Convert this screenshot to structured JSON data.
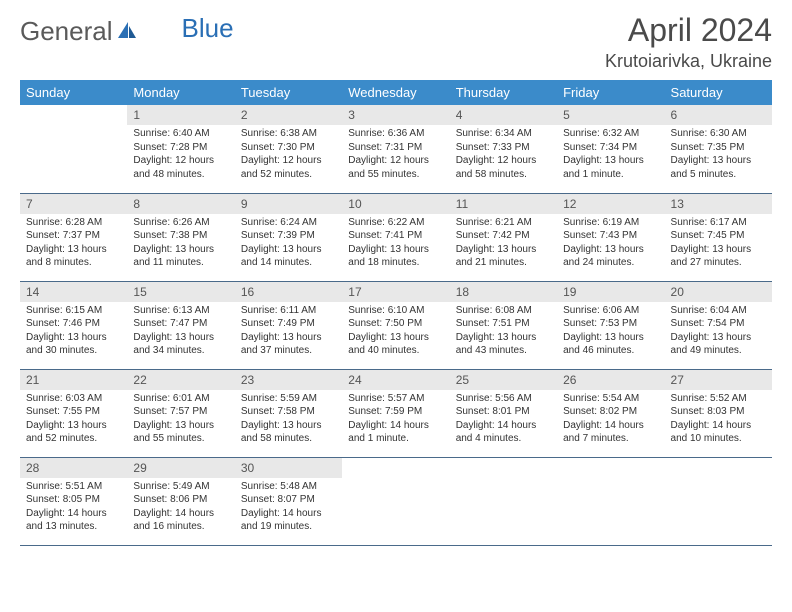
{
  "header": {
    "logo_part1": "General",
    "logo_part2": "Blue",
    "month_title": "April 2024",
    "location": "Krutoiarivka, Ukraine"
  },
  "colors": {
    "header_bg": "#3b8bca",
    "header_text": "#ffffff",
    "daynum_bg": "#e8e8e8",
    "daynum_text": "#555555",
    "body_text": "#333333",
    "border": "#4a6a8a",
    "logo_gray": "#5a5a5a",
    "logo_blue": "#2a6fb5"
  },
  "weekdays": [
    "Sunday",
    "Monday",
    "Tuesday",
    "Wednesday",
    "Thursday",
    "Friday",
    "Saturday"
  ],
  "weeks": [
    [
      null,
      {
        "n": "1",
        "sr": "Sunrise: 6:40 AM",
        "ss": "Sunset: 7:28 PM",
        "d1": "Daylight: 12 hours",
        "d2": "and 48 minutes."
      },
      {
        "n": "2",
        "sr": "Sunrise: 6:38 AM",
        "ss": "Sunset: 7:30 PM",
        "d1": "Daylight: 12 hours",
        "d2": "and 52 minutes."
      },
      {
        "n": "3",
        "sr": "Sunrise: 6:36 AM",
        "ss": "Sunset: 7:31 PM",
        "d1": "Daylight: 12 hours",
        "d2": "and 55 minutes."
      },
      {
        "n": "4",
        "sr": "Sunrise: 6:34 AM",
        "ss": "Sunset: 7:33 PM",
        "d1": "Daylight: 12 hours",
        "d2": "and 58 minutes."
      },
      {
        "n": "5",
        "sr": "Sunrise: 6:32 AM",
        "ss": "Sunset: 7:34 PM",
        "d1": "Daylight: 13 hours",
        "d2": "and 1 minute."
      },
      {
        "n": "6",
        "sr": "Sunrise: 6:30 AM",
        "ss": "Sunset: 7:35 PM",
        "d1": "Daylight: 13 hours",
        "d2": "and 5 minutes."
      }
    ],
    [
      {
        "n": "7",
        "sr": "Sunrise: 6:28 AM",
        "ss": "Sunset: 7:37 PM",
        "d1": "Daylight: 13 hours",
        "d2": "and 8 minutes."
      },
      {
        "n": "8",
        "sr": "Sunrise: 6:26 AM",
        "ss": "Sunset: 7:38 PM",
        "d1": "Daylight: 13 hours",
        "d2": "and 11 minutes."
      },
      {
        "n": "9",
        "sr": "Sunrise: 6:24 AM",
        "ss": "Sunset: 7:39 PM",
        "d1": "Daylight: 13 hours",
        "d2": "and 14 minutes."
      },
      {
        "n": "10",
        "sr": "Sunrise: 6:22 AM",
        "ss": "Sunset: 7:41 PM",
        "d1": "Daylight: 13 hours",
        "d2": "and 18 minutes."
      },
      {
        "n": "11",
        "sr": "Sunrise: 6:21 AM",
        "ss": "Sunset: 7:42 PM",
        "d1": "Daylight: 13 hours",
        "d2": "and 21 minutes."
      },
      {
        "n": "12",
        "sr": "Sunrise: 6:19 AM",
        "ss": "Sunset: 7:43 PM",
        "d1": "Daylight: 13 hours",
        "d2": "and 24 minutes."
      },
      {
        "n": "13",
        "sr": "Sunrise: 6:17 AM",
        "ss": "Sunset: 7:45 PM",
        "d1": "Daylight: 13 hours",
        "d2": "and 27 minutes."
      }
    ],
    [
      {
        "n": "14",
        "sr": "Sunrise: 6:15 AM",
        "ss": "Sunset: 7:46 PM",
        "d1": "Daylight: 13 hours",
        "d2": "and 30 minutes."
      },
      {
        "n": "15",
        "sr": "Sunrise: 6:13 AM",
        "ss": "Sunset: 7:47 PM",
        "d1": "Daylight: 13 hours",
        "d2": "and 34 minutes."
      },
      {
        "n": "16",
        "sr": "Sunrise: 6:11 AM",
        "ss": "Sunset: 7:49 PM",
        "d1": "Daylight: 13 hours",
        "d2": "and 37 minutes."
      },
      {
        "n": "17",
        "sr": "Sunrise: 6:10 AM",
        "ss": "Sunset: 7:50 PM",
        "d1": "Daylight: 13 hours",
        "d2": "and 40 minutes."
      },
      {
        "n": "18",
        "sr": "Sunrise: 6:08 AM",
        "ss": "Sunset: 7:51 PM",
        "d1": "Daylight: 13 hours",
        "d2": "and 43 minutes."
      },
      {
        "n": "19",
        "sr": "Sunrise: 6:06 AM",
        "ss": "Sunset: 7:53 PM",
        "d1": "Daylight: 13 hours",
        "d2": "and 46 minutes."
      },
      {
        "n": "20",
        "sr": "Sunrise: 6:04 AM",
        "ss": "Sunset: 7:54 PM",
        "d1": "Daylight: 13 hours",
        "d2": "and 49 minutes."
      }
    ],
    [
      {
        "n": "21",
        "sr": "Sunrise: 6:03 AM",
        "ss": "Sunset: 7:55 PM",
        "d1": "Daylight: 13 hours",
        "d2": "and 52 minutes."
      },
      {
        "n": "22",
        "sr": "Sunrise: 6:01 AM",
        "ss": "Sunset: 7:57 PM",
        "d1": "Daylight: 13 hours",
        "d2": "and 55 minutes."
      },
      {
        "n": "23",
        "sr": "Sunrise: 5:59 AM",
        "ss": "Sunset: 7:58 PM",
        "d1": "Daylight: 13 hours",
        "d2": "and 58 minutes."
      },
      {
        "n": "24",
        "sr": "Sunrise: 5:57 AM",
        "ss": "Sunset: 7:59 PM",
        "d1": "Daylight: 14 hours",
        "d2": "and 1 minute."
      },
      {
        "n": "25",
        "sr": "Sunrise: 5:56 AM",
        "ss": "Sunset: 8:01 PM",
        "d1": "Daylight: 14 hours",
        "d2": "and 4 minutes."
      },
      {
        "n": "26",
        "sr": "Sunrise: 5:54 AM",
        "ss": "Sunset: 8:02 PM",
        "d1": "Daylight: 14 hours",
        "d2": "and 7 minutes."
      },
      {
        "n": "27",
        "sr": "Sunrise: 5:52 AM",
        "ss": "Sunset: 8:03 PM",
        "d1": "Daylight: 14 hours",
        "d2": "and 10 minutes."
      }
    ],
    [
      {
        "n": "28",
        "sr": "Sunrise: 5:51 AM",
        "ss": "Sunset: 8:05 PM",
        "d1": "Daylight: 14 hours",
        "d2": "and 13 minutes."
      },
      {
        "n": "29",
        "sr": "Sunrise: 5:49 AM",
        "ss": "Sunset: 8:06 PM",
        "d1": "Daylight: 14 hours",
        "d2": "and 16 minutes."
      },
      {
        "n": "30",
        "sr": "Sunrise: 5:48 AM",
        "ss": "Sunset: 8:07 PM",
        "d1": "Daylight: 14 hours",
        "d2": "and 19 minutes."
      },
      null,
      null,
      null,
      null
    ]
  ]
}
